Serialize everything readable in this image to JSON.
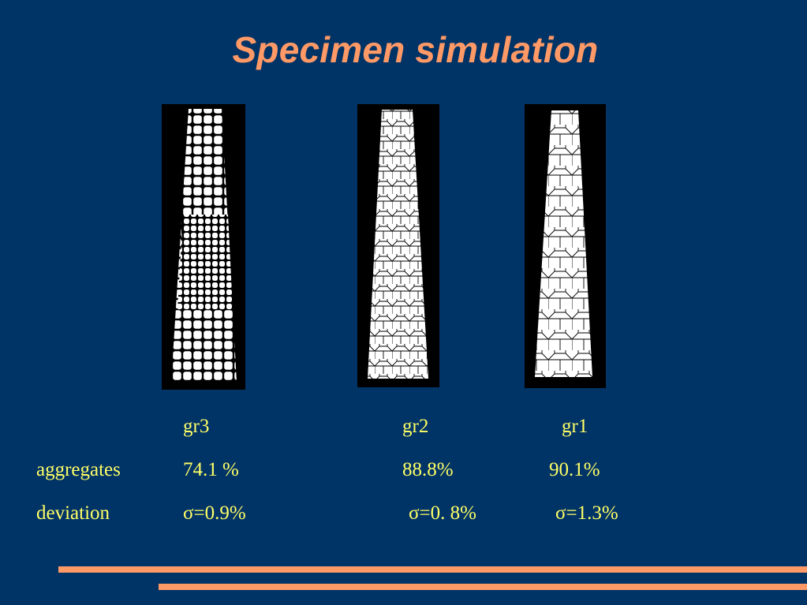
{
  "slide": {
    "title": "Specimen simulation",
    "specimens": [
      {
        "label": "gr3",
        "aggregates": "74.1 %",
        "deviation": "σ=0.9%"
      },
      {
        "label": "gr2",
        "aggregates": "88.8%",
        "deviation": "σ=0. 8%"
      },
      {
        "label": "gr1",
        "aggregates": "90.1%",
        "deviation": "σ=1.3%"
      }
    ],
    "row_labels": {
      "aggregates": "aggregates",
      "deviation": "deviation"
    }
  },
  "colors": {
    "background": "#003366",
    "title": "#ff9966",
    "text": "#ffff66",
    "accent_bars": "#ff9966"
  }
}
